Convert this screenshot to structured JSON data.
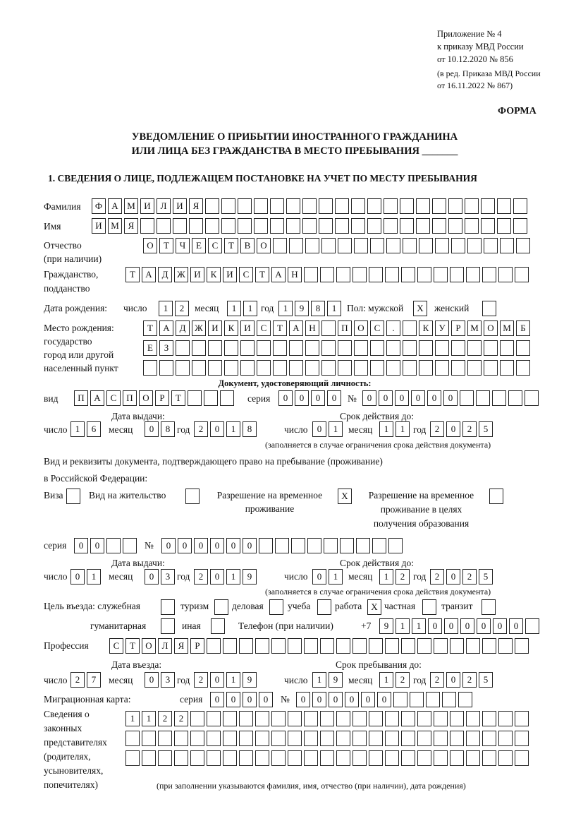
{
  "header": {
    "appendix": "Приложение № 4",
    "order": "к приказу МВД России",
    "order_date": "от 10.12.2020 № 856",
    "edition_1": "(в ред. Приказа МВД России",
    "edition_2": "от 16.11.2022 № 867)",
    "form_label": "ФОРМА",
    "title_1": "УВЕДОМЛЕНИЕ О ПРИБЫТИИ ИНОСТРАННОГО ГРАЖДАНИНА",
    "title_2": "ИЛИ ЛИЦА БЕЗ ГРАЖДАНСТВА В МЕСТО ПРЕБЫВАНИЯ _______",
    "section_1": "1. СВЕДЕНИЯ О ЛИЦЕ, ПОДЛЕЖАЩЕМ ПОСТАНОВКЕ НА УЧЕТ ПО МЕСТУ ПРЕБЫВАНИЯ"
  },
  "person": {
    "surname_label": "Фамилия",
    "surname": "ФАМИЛИЯ",
    "name_label": "Имя",
    "name": "ИМЯ",
    "patronymic_label_1": "Отчество",
    "patronymic_label_2": "(при наличии)",
    "patronymic": "ОТЧЕСТВО",
    "citizenship_label_1": "Гражданство,",
    "citizenship_label_2": "подданство",
    "citizenship": "ТАДЖИКИСТАН",
    "birth_label": "Дата рождения:",
    "day_label": "число",
    "month_label": "месяц",
    "year_label": "год",
    "birth_day": "12",
    "birth_month": "11",
    "birth_year": "1981",
    "sex_label": "Пол: мужской",
    "male": "X",
    "female_label": "женский",
    "female": "",
    "birthplace_label_1": "Место рождения:",
    "birthplace_label_2": "государство",
    "birthplace_label_3": "город или другой",
    "birthplace_label_4": "населенный пункт",
    "birthplace_1": "ТАДЖИКИСТАН ПОС. КУРМОМБ",
    "birthplace_2": "ЕЗ",
    "birthplace_3": ""
  },
  "id_document": {
    "heading": "Документ, удостоверяющий личность:",
    "type_label": "вид",
    "type": "ПАСПОРТ",
    "series_label": "серия",
    "series": "0000",
    "number_label": "№",
    "number": "000000",
    "issue_label": "Дата выдачи:",
    "valid_label": "Срок действия до:",
    "day_label": "число",
    "month_label": "месяц",
    "year_label": "год",
    "issue_day": "16",
    "issue_month": "08",
    "issue_year": "2018",
    "valid_day": "01",
    "valid_month": "11",
    "valid_year": "2025",
    "note": "(заполняется в случае ограничения срока действия документа)"
  },
  "stay_document": {
    "label_1": "Вид и реквизиты документа, подтверждающего право на пребывание (проживание)",
    "label_2": "в Российской Федерации:",
    "visa_label": "Виза",
    "visa": "",
    "residence_label": "Вид на жительство",
    "residence": "",
    "temp_label_1": "Разрешение на временное",
    "temp_label_2": "проживание",
    "temp": "X",
    "edu_label_1": "Разрешение на временное",
    "edu_label_2": "проживание в целях",
    "edu_label_3": "получения образования",
    "edu": "",
    "series_label": "серия",
    "series": "00",
    "number_label": "№",
    "number": "000000",
    "issue_label": "Дата выдачи:",
    "valid_label": "Срок действия до:",
    "day_label": "число",
    "month_label": "месяц",
    "year_label": "год",
    "issue_day": "01",
    "issue_month": "03",
    "issue_year": "2019",
    "valid_day": "01",
    "valid_month": "12",
    "valid_year": "2025",
    "note": "(заполняется в случае ограничения срока действия документа)"
  },
  "purpose": {
    "label": "Цель въезда: служебная",
    "service": "",
    "tourism_label": "туризм",
    "tourism": "",
    "business_label": "деловая",
    "business": "",
    "study_label": "учеба",
    "study": "",
    "work_label": "работа",
    "work": "X",
    "private_label": "частная",
    "private": "",
    "transit_label": "транзит",
    "transit": "",
    "humanitarian_label": "гуманитарная",
    "humanitarian": "",
    "other_label": "иная",
    "other": "",
    "phone_label": "Телефон (при наличии)",
    "phone_prefix": "+7",
    "phone": "911000000"
  },
  "profession": {
    "label": "Профессия",
    "value": "СТОЛЯР"
  },
  "entry": {
    "entry_label": "Дата въезда:",
    "stay_until_label": "Срок пребывания до:",
    "day_label": "число",
    "month_label": "месяц",
    "year_label": "год",
    "entry_day": "27",
    "entry_month": "03",
    "entry_year": "2019",
    "until_day": "19",
    "until_month": "12",
    "until_year": "2025"
  },
  "migration_card": {
    "label": "Миграционная карта:",
    "series_label": "серия",
    "series": "0000",
    "number_label": "№",
    "number": "000000"
  },
  "representatives": {
    "label_1": "Сведения о",
    "label_2": "законных",
    "label_3": "представителях",
    "label_4": "(родителях,",
    "label_5": "усыновителях,",
    "label_6": "попечителях)",
    "row_1": "1122",
    "row_2": "",
    "row_3": "",
    "note": "(при заполнении указываются фамилия, имя, отчество (при наличии), дата рождения)"
  }
}
